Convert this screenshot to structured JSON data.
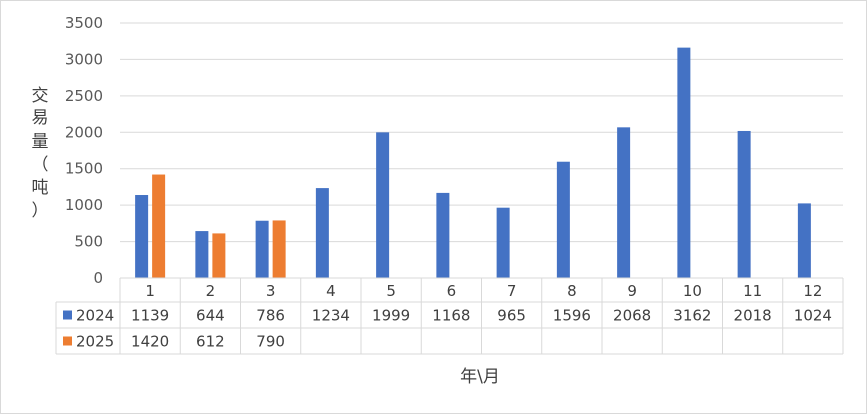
{
  "chart_data": {
    "type": "bar",
    "xlabel": "年\\月",
    "ylabel_chars": [
      "交",
      "易",
      "量",
      "（",
      "吨",
      "）"
    ],
    "ylim": [
      0,
      3500
    ],
    "yticks": [
      0,
      500,
      1000,
      1500,
      2000,
      2500,
      3000,
      3500
    ],
    "grid": true,
    "legend": "data-table",
    "categories": [
      "1",
      "2",
      "3",
      "4",
      "5",
      "6",
      "7",
      "8",
      "9",
      "10",
      "11",
      "12"
    ],
    "series": [
      {
        "name": "2024",
        "color": "#4472C4",
        "values": [
          1139,
          644,
          786,
          1234,
          1999,
          1168,
          965,
          1596,
          2068,
          3162,
          2018,
          1024
        ]
      },
      {
        "name": "2025",
        "color": "#ED7D31",
        "values": [
          1420,
          612,
          790,
          null,
          null,
          null,
          null,
          null,
          null,
          null,
          null,
          null
        ]
      }
    ]
  }
}
